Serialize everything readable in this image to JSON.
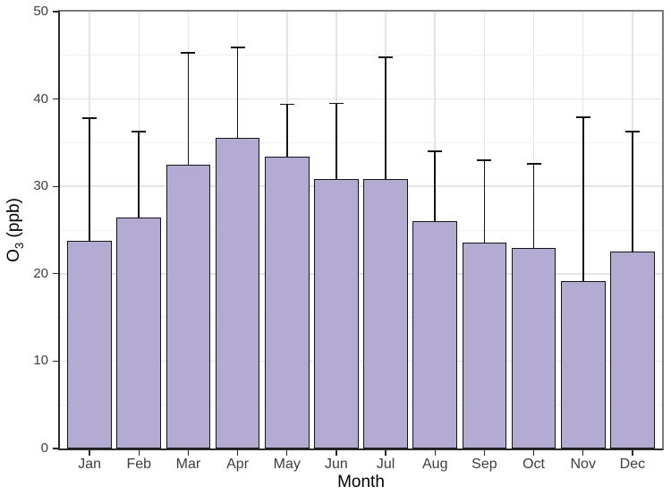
{
  "chart_data": {
    "type": "bar",
    "title": "",
    "categories": [
      "Jan",
      "Feb",
      "Mar",
      "Apr",
      "May",
      "Jun",
      "Jul",
      "Aug",
      "Sep",
      "Oct",
      "Nov",
      "Dec"
    ],
    "values": [
      23.8,
      26.4,
      32.5,
      35.6,
      33.4,
      30.8,
      30.8,
      26.0,
      23.6,
      23.0,
      19.2,
      22.5
    ],
    "error_bar_tops": [
      37.8,
      36.3,
      45.3,
      45.9,
      39.4,
      39.5,
      44.8,
      34.0,
      33.0,
      32.6,
      37.9,
      36.3
    ],
    "error_bar_style": "upper whisker only, horizontal cap at top",
    "xlabel": "Month",
    "ylabel": "O3 (ppb)",
    "ylabel_parts": {
      "base": "O",
      "subscript": "3",
      "suffix": " (ppb)"
    },
    "ylim": [
      0,
      50
    ],
    "yticks_major": [
      0,
      10,
      20,
      30,
      40,
      50
    ],
    "yticks_minor": [
      5,
      15,
      25,
      35,
      45
    ],
    "grid": "horizontal major + minor, vertical major at category centers",
    "legend": "none",
    "colors": {
      "bar_fill": "#b3abd2",
      "bar_border": "#141414",
      "error_bar": "#141414",
      "grid_major": "#e4e4e4",
      "grid_minor": "#f1f1f1",
      "panel_border_top_right": "#7a7a7a",
      "axis_line": "#2b2b2b",
      "tick_mark": "#2b2b2b",
      "tick_label": "#3d3d3d",
      "axis_title": "#000000",
      "background": "#ffffff"
    }
  }
}
